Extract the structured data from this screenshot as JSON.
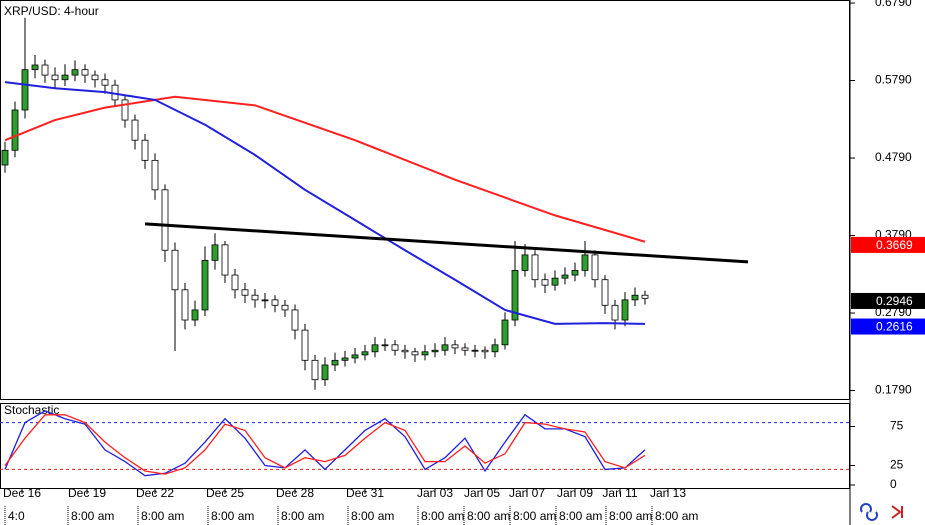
{
  "chart_data": [
    {
      "type": "candlestick",
      "title": "XRP/USD: 4-hour",
      "open": [
        0.47,
        0.489,
        0.541,
        0.593,
        0.599,
        0.586,
        0.58,
        0.586,
        0.593,
        0.586,
        0.58,
        0.573,
        0.554,
        0.528,
        0.502,
        0.476,
        0.438,
        0.36,
        0.309,
        0.27,
        0.283,
        0.347,
        0.367,
        0.328,
        0.309,
        0.302,
        0.296,
        0.296,
        0.289,
        0.283,
        0.257,
        0.218,
        0.193,
        0.212,
        0.218,
        0.221,
        0.225,
        0.229,
        0.238,
        0.238,
        0.231,
        0.229,
        0.225,
        0.229,
        0.231,
        0.238,
        0.234,
        0.231,
        0.231,
        0.229,
        0.238,
        0.27,
        0.334,
        0.354,
        0.322,
        0.315,
        0.324,
        0.328,
        0.334,
        0.354,
        0.322,
        0.289,
        0.27,
        0.296,
        0.302
      ],
      "high": [
        0.5,
        0.552,
        0.66,
        0.612,
        0.606,
        0.596,
        0.6,
        0.605,
        0.6,
        0.592,
        0.588,
        0.58,
        0.56,
        0.535,
        0.51,
        0.485,
        0.445,
        0.37,
        0.318,
        0.295,
        0.365,
        0.382,
        0.372,
        0.336,
        0.318,
        0.31,
        0.305,
        0.302,
        0.296,
        0.29,
        0.265,
        0.225,
        0.222,
        0.228,
        0.23,
        0.234,
        0.238,
        0.248,
        0.246,
        0.244,
        0.238,
        0.234,
        0.238,
        0.24,
        0.248,
        0.244,
        0.24,
        0.238,
        0.236,
        0.246,
        0.28,
        0.372,
        0.368,
        0.36,
        0.33,
        0.334,
        0.338,
        0.344,
        0.372,
        0.36,
        0.328,
        0.296,
        0.306,
        0.312,
        0.308
      ],
      "low": [
        0.46,
        0.48,
        0.53,
        0.582,
        0.576,
        0.57,
        0.572,
        0.578,
        0.576,
        0.57,
        0.562,
        0.545,
        0.518,
        0.49,
        0.465,
        0.425,
        0.345,
        0.23,
        0.258,
        0.262,
        0.275,
        0.335,
        0.318,
        0.298,
        0.292,
        0.286,
        0.285,
        0.28,
        0.274,
        0.245,
        0.205,
        0.18,
        0.185,
        0.204,
        0.21,
        0.214,
        0.218,
        0.222,
        0.23,
        0.224,
        0.22,
        0.216,
        0.218,
        0.222,
        0.224,
        0.226,
        0.224,
        0.222,
        0.22,
        0.222,
        0.232,
        0.262,
        0.326,
        0.312,
        0.305,
        0.308,
        0.316,
        0.32,
        0.326,
        0.312,
        0.278,
        0.258,
        0.262,
        0.288,
        0.29
      ],
      "close": [
        0.489,
        0.541,
        0.593,
        0.599,
        0.586,
        0.58,
        0.586,
        0.593,
        0.586,
        0.58,
        0.573,
        0.554,
        0.528,
        0.502,
        0.476,
        0.438,
        0.36,
        0.309,
        0.27,
        0.283,
        0.347,
        0.367,
        0.328,
        0.309,
        0.302,
        0.296,
        0.296,
        0.289,
        0.283,
        0.257,
        0.218,
        0.193,
        0.212,
        0.218,
        0.221,
        0.225,
        0.229,
        0.238,
        0.238,
        0.231,
        0.229,
        0.225,
        0.229,
        0.231,
        0.238,
        0.234,
        0.231,
        0.231,
        0.229,
        0.238,
        0.27,
        0.334,
        0.354,
        0.322,
        0.315,
        0.324,
        0.328,
        0.334,
        0.354,
        0.322,
        0.289,
        0.27,
        0.296,
        0.302,
        0.298
      ],
      "up_color": "#2f9e2f",
      "down_color": "#ffffff",
      "series": [
        {
          "color": "#ff2020",
          "x": [
            0,
            5,
            10,
            15,
            17,
            25,
            35,
            45,
            55,
            64
          ],
          "values": [
            0.502,
            0.528,
            0.544,
            0.554,
            0.558,
            0.547,
            0.502,
            0.451,
            0.405,
            0.371
          ]
        },
        {
          "color": "#2020dd",
          "x": [
            0,
            5,
            10,
            15,
            20,
            25,
            30,
            35,
            40,
            45,
            50,
            55,
            60,
            64
          ],
          "values": [
            0.577,
            0.569,
            0.564,
            0.554,
            0.522,
            0.483,
            0.438,
            0.399,
            0.36,
            0.322,
            0.283,
            0.265,
            0.266,
            0.265
          ]
        },
        {
          "color": "#000000",
          "x": [
            14,
            74.3
          ],
          "values": [
            0.394,
            0.345
          ]
        }
      ],
      "xlim": [
        -0.5,
        84.5
      ],
      "ylim": [
        0.1668,
        0.6829
      ],
      "yticks": [
        {
          "value": 0.679,
          "label": "0.6790"
        },
        {
          "value": 0.579,
          "label": "0.5790"
        },
        {
          "value": 0.479,
          "label": "0.4790"
        },
        {
          "value": 0.379,
          "label": "0.3790"
        },
        {
          "value": 0.279,
          "label": "0.2790"
        },
        {
          "value": 0.179,
          "label": "0.1790"
        }
      ],
      "price_tags": [
        {
          "value": 0.3669,
          "label": "0.3669",
          "color": "#ff0000"
        },
        {
          "value": 0.2946,
          "label": "0.2946",
          "color": "#000000"
        },
        {
          "value": 0.2616,
          "label": "0.2616",
          "color": "#0000ff"
        }
      ]
    },
    {
      "type": "line",
      "title": "Stochastic",
      "x": [
        0,
        2,
        4,
        6,
        8,
        10,
        12,
        14,
        16,
        18,
        20,
        22,
        24,
        26,
        28,
        30,
        32,
        34,
        36,
        38,
        40,
        42,
        44,
        46,
        48,
        50,
        52,
        54,
        56,
        58,
        60,
        62,
        64
      ],
      "series": [
        {
          "color": "#2020dd",
          "values": [
            20,
            80,
            95,
            85,
            78,
            45,
            30,
            12,
            15,
            28,
            55,
            85,
            60,
            25,
            22,
            45,
            20,
            45,
            70,
            85,
            62,
            20,
            35,
            60,
            18,
            55,
            90,
            72,
            72,
            62,
            20,
            22,
            45
          ]
        },
        {
          "color": "#ff2020",
          "values": [
            25,
            60,
            90,
            90,
            80,
            55,
            35,
            18,
            14,
            22,
            45,
            78,
            70,
            35,
            22,
            35,
            30,
            38,
            60,
            80,
            70,
            30,
            30,
            50,
            28,
            40,
            80,
            78,
            72,
            68,
            30,
            22,
            38
          ]
        }
      ],
      "levels": [
        {
          "value": 80,
          "color": "#2020dd"
        },
        {
          "value": 20,
          "color": "#dd2020"
        }
      ],
      "xlim": [
        -0.5,
        84.5
      ],
      "ylim": [
        0,
        100
      ],
      "yticks": [
        0,
        25,
        75
      ],
      "date_ticks": [
        {
          "value": 1.7,
          "label": "Dec 16"
        },
        {
          "value": 8.2,
          "label": "Dec 19"
        },
        {
          "value": 15,
          "label": "Dec 22"
        },
        {
          "value": 22,
          "label": "Dec 25"
        },
        {
          "value": 29,
          "label": "Dec 28"
        },
        {
          "value": 36,
          "label": "Dec 31"
        },
        {
          "value": 43,
          "label": "Jan 03"
        },
        {
          "value": 47.7,
          "label": "Jan 05"
        },
        {
          "value": 52.2,
          "label": "Jan 07"
        },
        {
          "value": 57,
          "label": "Jan 09"
        },
        {
          "value": 61.5,
          "label": "Jan 11"
        },
        {
          "value": 66.3,
          "label": "Jan 13"
        }
      ],
      "time_ticks": [
        {
          "value": 0,
          "label": "4:0"
        },
        {
          "value": 6.3,
          "label": "8:00 am"
        },
        {
          "value": 13.3,
          "label": "8:00 am"
        },
        {
          "value": 20.3,
          "label": "8:00 am"
        },
        {
          "value": 27.3,
          "label": "8:00 am"
        },
        {
          "value": 34.3,
          "label": "8:00 am"
        },
        {
          "value": 41.3,
          "label": "8:00 am"
        },
        {
          "value": 45.9,
          "label": "8:00 am"
        },
        {
          "value": 50.5,
          "label": "8:00 am"
        },
        {
          "value": 55.1,
          "label": "8:00 am"
        },
        {
          "value": 60.1,
          "label": "8:00 am"
        },
        {
          "value": 64.7,
          "label": "8:00 am"
        }
      ]
    }
  ]
}
